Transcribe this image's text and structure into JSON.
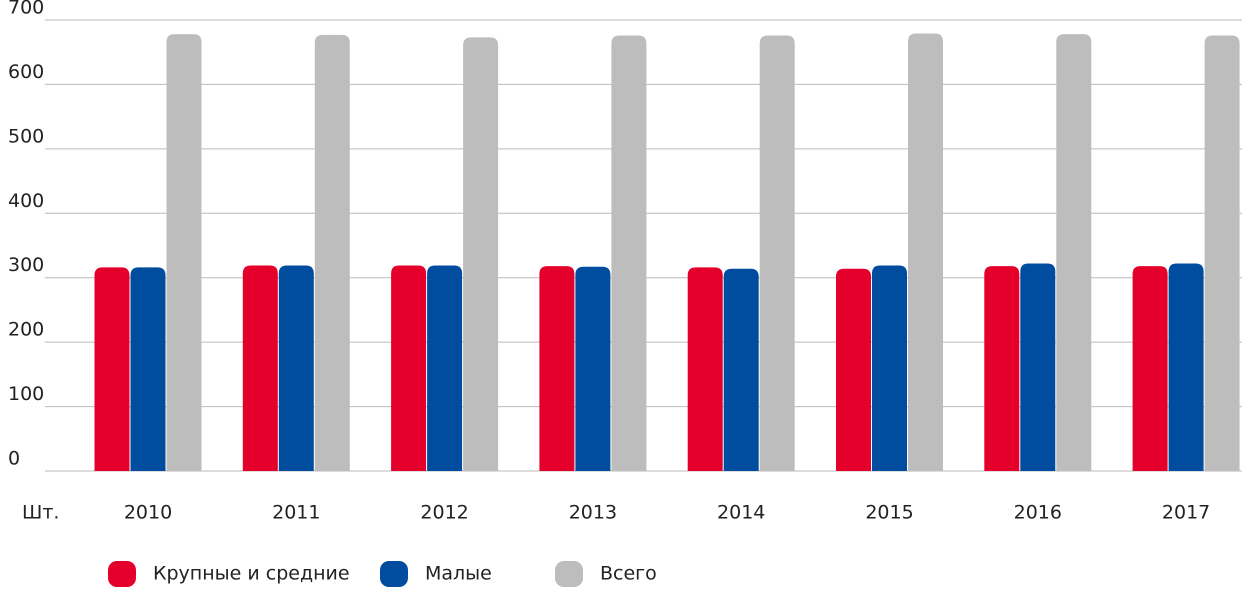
{
  "chart_data": {
    "type": "bar",
    "y_label": "Шт.",
    "categories": [
      "2010",
      "2011",
      "2012",
      "2013",
      "2014",
      "2015",
      "2016",
      "2017"
    ],
    "series": [
      {
        "name": "Крупные и средние",
        "color": "#e4002b",
        "values": [
          316,
          319,
          319,
          318,
          316,
          314,
          318,
          318
        ]
      },
      {
        "name": "Малые",
        "color": "#004c9e",
        "values": [
          316,
          319,
          319,
          317,
          314,
          319,
          322,
          322
        ]
      },
      {
        "name": "Всего",
        "color": "#bdbdbd",
        "values": [
          678,
          677,
          673,
          676,
          676,
          679,
          678,
          676
        ]
      }
    ],
    "ylim": [
      0,
      700
    ],
    "yticks": [
      0,
      100,
      200,
      300,
      400,
      500,
      600,
      700
    ],
    "grid": true
  }
}
